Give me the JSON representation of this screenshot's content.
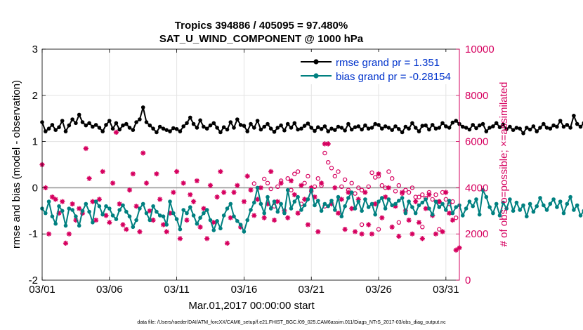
{
  "chart_data": {
    "type": "line",
    "title": "Tropics 394886 / 405095 = 97.480%",
    "subtitle": "SAT_U_WIND_COMPONENT @ 1000 hPa",
    "xlabel": "Mar.01,2017 00:00:00 start",
    "ylabel_left": "rmse and bias (model - observation)",
    "ylabel_right": "# of obs: o=possible; ×=assimilated",
    "footer": "data file: /Users/raeder/DAI/ATM_forcXX/CAM6_setup/f.e21.FHIST_BGC.f09_025.CAM6assim.011/Diags_NTrS_2017-03/obs_diag_output.nc",
    "xlim": [
      1,
      32
    ],
    "ylim_left": [
      -2,
      3
    ],
    "ylim_right": [
      0,
      10000
    ],
    "grid": true,
    "x_ticks": [
      {
        "value": 1,
        "label": "03/01"
      },
      {
        "value": 6,
        "label": "03/06"
      },
      {
        "value": 11,
        "label": "03/11"
      },
      {
        "value": 16,
        "label": "03/16"
      },
      {
        "value": 21,
        "label": "03/21"
      },
      {
        "value": 26,
        "label": "03/26"
      },
      {
        "value": 31,
        "label": "03/31"
      }
    ],
    "y_ticks_left": [
      "-2",
      "-1",
      "0",
      "1",
      "2",
      "3"
    ],
    "y_ticks_right": [
      "0",
      "2000",
      "4000",
      "6000",
      "8000",
      "10000"
    ],
    "colors": {
      "rmse": "#000000",
      "bias": "#008080",
      "obs": "#d6005f",
      "right_axis": "#d6005f",
      "legend_text": "#0033cc",
      "zero_line": "#999999",
      "grid": "#e3e3e3"
    },
    "time_step_days": 0.25,
    "series": [
      {
        "name": "rmse",
        "legend": "rmse grand pr = 1.351",
        "axis": "left",
        "values": [
          1.42,
          1.22,
          1.28,
          1.36,
          1.25,
          1.31,
          1.45,
          1.22,
          1.35,
          1.48,
          1.4,
          1.58,
          1.42,
          1.35,
          1.4,
          1.32,
          1.36,
          1.3,
          1.22,
          1.36,
          1.45,
          1.28,
          1.4,
          1.26,
          1.35,
          1.38,
          1.3,
          1.25,
          1.42,
          1.48,
          1.74,
          1.42,
          1.35,
          1.28,
          1.2,
          1.32,
          1.28,
          1.25,
          1.22,
          1.29,
          1.27,
          1.22,
          1.33,
          1.4,
          1.52,
          1.38,
          1.3,
          1.46,
          1.32,
          1.28,
          1.35,
          1.4,
          1.3,
          1.2,
          1.31,
          1.26,
          1.42,
          1.3,
          1.48,
          1.36,
          1.34,
          1.22,
          1.38,
          1.3,
          1.45,
          1.26,
          1.32,
          1.38,
          1.28,
          1.21,
          1.3,
          1.35,
          1.24,
          1.38,
          1.3,
          1.4,
          1.26,
          1.28,
          1.34,
          1.39,
          1.3,
          1.23,
          1.31,
          1.27,
          1.33,
          1.22,
          1.28,
          1.25,
          1.32,
          1.3,
          1.24,
          1.38,
          1.26,
          1.31,
          1.33,
          1.26,
          1.35,
          1.28,
          1.3,
          1.38,
          1.36,
          1.28,
          1.33,
          1.3,
          1.25,
          1.33,
          1.27,
          1.2,
          1.32,
          1.28,
          1.4,
          1.3,
          1.22,
          1.34,
          1.35,
          1.26,
          1.36,
          1.28,
          1.3,
          1.4,
          1.33,
          1.3,
          1.41,
          1.45,
          1.38,
          1.32,
          1.3,
          1.26,
          1.36,
          1.29,
          1.35,
          1.38,
          1.22,
          1.3,
          1.33,
          1.4,
          1.31,
          1.37,
          1.27,
          1.32,
          1.25,
          1.3,
          1.28,
          1.18,
          1.3,
          1.26,
          1.33,
          1.22,
          1.3,
          1.38,
          1.3,
          1.28,
          1.35,
          1.32,
          1.45,
          1.32,
          1.36,
          1.3,
          1.56,
          1.38,
          1.32,
          1.4,
          1.28,
          1.38,
          1.34,
          1.42,
          1.36,
          1.45,
          1.38,
          1.52,
          1.48,
          1.42,
          1.56,
          1.6,
          1.55,
          1.48,
          1.56,
          1.44,
          1.45,
          1.5
        ]
      },
      {
        "name": "bias",
        "legend": "bias grand pr = -0.28154",
        "axis": "left",
        "values": [
          -0.45,
          -0.55,
          -0.3,
          -0.62,
          -0.78,
          -0.4,
          -0.5,
          -0.82,
          -0.45,
          -0.48,
          -0.62,
          -0.82,
          -0.5,
          -0.35,
          -0.52,
          -0.75,
          -0.3,
          -0.4,
          -0.58,
          -0.4,
          -0.45,
          -0.6,
          -0.68,
          -0.48,
          -0.38,
          -0.52,
          -0.62,
          -0.85,
          -0.7,
          -0.45,
          -0.35,
          -0.55,
          -0.7,
          -0.4,
          -0.52,
          -0.6,
          -0.62,
          -0.8,
          -0.3,
          -0.55,
          -0.68,
          -0.9,
          -0.48,
          -0.55,
          -0.42,
          -0.6,
          -0.78,
          -0.65,
          -0.55,
          -0.48,
          -0.7,
          -0.92,
          -0.72,
          -0.88,
          -0.6,
          -0.45,
          -0.35,
          -0.62,
          -0.72,
          -0.8,
          -0.95,
          -0.7,
          -0.48,
          -0.32,
          0.0,
          -0.35,
          -0.55,
          -0.2,
          -0.45,
          -0.3,
          -0.52,
          -0.35,
          -0.55,
          -0.05,
          -0.45,
          -0.3,
          -0.2,
          -0.48,
          -0.38,
          -0.25,
          -0.05,
          -0.38,
          -0.28,
          -0.5,
          -0.35,
          -0.4,
          -0.28,
          -0.48,
          -0.2,
          -0.62,
          -0.4,
          -0.22,
          -0.1,
          -0.45,
          -0.3,
          -0.5,
          -0.25,
          -0.42,
          -0.35,
          -0.58,
          -0.3,
          -0.22,
          -0.45,
          -0.25,
          -0.38,
          -0.35,
          -0.28,
          -0.22,
          -0.55,
          -0.3,
          -0.42,
          -0.55,
          -0.38,
          -0.32,
          -0.25,
          -0.45,
          -0.58,
          -0.3,
          -0.42,
          -0.35,
          -0.48,
          -0.28,
          -0.55,
          -0.42,
          -0.38,
          -0.6,
          -0.45,
          -0.3,
          -0.4,
          -0.25,
          -0.58,
          -0.05,
          -0.2,
          -0.42,
          -0.55,
          -0.35,
          -0.6,
          -0.32,
          -0.45,
          -0.25,
          -0.5,
          -0.32,
          -0.48,
          -0.38,
          -0.62,
          -0.35,
          -0.52,
          -0.4,
          -0.22,
          -0.38,
          -0.48,
          -0.35,
          -0.25,
          -0.42,
          -0.3,
          -0.55,
          -0.35,
          -0.2,
          -0.48,
          -0.38,
          -0.6,
          -0.5,
          -0.4,
          -0.22,
          -0.8,
          -0.35,
          -0.05,
          -0.25,
          -0.45,
          -0.55,
          -0.4,
          -0.6,
          -0.3,
          -0.35,
          -0.1,
          -0.55,
          -0.3,
          -0.15,
          -0.25,
          -0.55,
          -0.3,
          -0.4,
          -0.35,
          -0.05,
          -0.55,
          -0.4
        ]
      },
      {
        "name": "obs_possible",
        "axis": "right",
        "marker": "o",
        "points": [
          [
            16.75,
            4180
          ],
          [
            17.5,
            4380
          ],
          [
            17.75,
            4200
          ],
          [
            18.0,
            3950
          ],
          [
            18.5,
            4050
          ],
          [
            18.75,
            4300
          ],
          [
            19.25,
            4400
          ],
          [
            19.5,
            3900
          ],
          [
            19.75,
            4600
          ],
          [
            20.0,
            4700
          ],
          [
            20.5,
            4200
          ],
          [
            20.75,
            4500
          ],
          [
            21.0,
            3850
          ],
          [
            21.25,
            4050
          ],
          [
            21.5,
            4400
          ],
          [
            21.75,
            4100
          ],
          [
            22.0,
            5500
          ],
          [
            22.25,
            5100
          ],
          [
            22.5,
            4850
          ],
          [
            22.75,
            4500
          ],
          [
            23.0,
            4700
          ],
          [
            23.25,
            4050
          ],
          [
            23.5,
            4350
          ],
          [
            23.75,
            3900
          ],
          [
            24.0,
            4200
          ],
          [
            24.25,
            3750
          ],
          [
            24.5,
            4000
          ],
          [
            24.75,
            3900
          ],
          [
            25.25,
            4050
          ],
          [
            25.5,
            4650
          ],
          [
            25.75,
            4450
          ],
          [
            26.0,
            4500
          ],
          [
            26.25,
            4100
          ],
          [
            26.5,
            4000
          ],
          [
            26.75,
            4700
          ],
          [
            27.0,
            4400
          ],
          [
            27.25,
            3850
          ],
          [
            27.5,
            4100
          ],
          [
            27.75,
            3750
          ],
          [
            28.0,
            3900
          ],
          [
            28.25,
            3800
          ],
          [
            28.5,
            4000
          ],
          [
            28.75,
            3600
          ],
          [
            29.0,
            3600
          ],
          [
            29.25,
            3700
          ],
          [
            29.5,
            3550
          ],
          [
            29.75,
            3800
          ],
          [
            30.0,
            3500
          ],
          [
            30.25,
            3700
          ],
          [
            30.5,
            3400
          ],
          [
            30.75,
            3800
          ],
          [
            31.0,
            3500
          ],
          [
            31.25,
            3300
          ],
          [
            31.5,
            3400
          ],
          [
            31.75,
            2700
          ],
          [
            18.25,
            3200
          ],
          [
            20.25,
            3300
          ],
          [
            22.0,
            3200
          ],
          [
            24.75,
            2400
          ],
          [
            26.0,
            2200
          ],
          [
            27.5,
            2500
          ],
          [
            29.25,
            2300
          ],
          [
            30.5,
            2200
          ]
        ]
      },
      {
        "name": "obs_assimilated",
        "axis": "right",
        "marker": "*",
        "points": [
          [
            1.0,
            5000
          ],
          [
            1.25,
            4000
          ],
          [
            1.5,
            2000
          ],
          [
            1.75,
            3600
          ],
          [
            2.0,
            3500
          ],
          [
            2.25,
            2900
          ],
          [
            2.5,
            3400
          ],
          [
            2.75,
            1600
          ],
          [
            3.0,
            2000
          ],
          [
            3.25,
            3300
          ],
          [
            3.5,
            2600
          ],
          [
            3.75,
            3100
          ],
          [
            4.0,
            2900
          ],
          [
            4.25,
            5700
          ],
          [
            4.5,
            4400
          ],
          [
            4.75,
            3400
          ],
          [
            5.0,
            2600
          ],
          [
            5.25,
            3500
          ],
          [
            5.5,
            4700
          ],
          [
            5.75,
            2800
          ],
          [
            6.0,
            2500
          ],
          [
            6.25,
            4200
          ],
          [
            6.5,
            6400
          ],
          [
            6.75,
            3300
          ],
          [
            7.0,
            2400
          ],
          [
            7.25,
            2200
          ],
          [
            7.5,
            3900
          ],
          [
            7.75,
            4600
          ],
          [
            8.0,
            3200
          ],
          [
            8.25,
            2100
          ],
          [
            8.5,
            5500
          ],
          [
            8.75,
            4200
          ],
          [
            9.0,
            3000
          ],
          [
            9.25,
            2600
          ],
          [
            9.5,
            4600
          ],
          [
            9.75,
            3500
          ],
          [
            10.0,
            2400
          ],
          [
            10.25,
            2100
          ],
          [
            10.5,
            2900
          ],
          [
            10.75,
            3800
          ],
          [
            11.0,
            4700
          ],
          [
            11.25,
            1800
          ],
          [
            11.5,
            4200
          ],
          [
            11.75,
            2600
          ],
          [
            12.0,
            3700
          ],
          [
            12.25,
            3400
          ],
          [
            12.5,
            4300
          ],
          [
            12.75,
            2300
          ],
          [
            13.0,
            3100
          ],
          [
            13.25,
            1800
          ],
          [
            13.5,
            4100
          ],
          [
            13.75,
            2500
          ],
          [
            14.0,
            3600
          ],
          [
            14.25,
            4700
          ],
          [
            14.5,
            3800
          ],
          [
            14.75,
            1600
          ],
          [
            15.0,
            2700
          ],
          [
            15.25,
            3800
          ],
          [
            15.5,
            4100
          ],
          [
            15.75,
            2300
          ],
          [
            16.0,
            3400
          ],
          [
            16.25,
            4500
          ],
          [
            16.5,
            3900
          ],
          [
            16.75,
            2800
          ],
          [
            17.0,
            3500
          ],
          [
            17.25,
            4000
          ],
          [
            17.5,
            2700
          ],
          [
            17.75,
            3300
          ],
          [
            18.0,
            4700
          ],
          [
            18.25,
            2600
          ],
          [
            18.5,
            3400
          ],
          [
            18.75,
            4200
          ],
          [
            19.0,
            3000
          ],
          [
            19.25,
            2700
          ],
          [
            19.5,
            4300
          ],
          [
            19.75,
            3700
          ],
          [
            20.0,
            2900
          ],
          [
            20.25,
            4100
          ],
          [
            20.5,
            3500
          ],
          [
            20.75,
            2400
          ],
          [
            21.0,
            4000
          ],
          [
            21.25,
            3600
          ],
          [
            21.5,
            2100
          ],
          [
            21.75,
            4200
          ],
          [
            22.0,
            5900
          ],
          [
            22.25,
            5900
          ],
          [
            22.5,
            3300
          ],
          [
            22.75,
            4000
          ],
          [
            23.0,
            2900
          ],
          [
            23.25,
            3500
          ],
          [
            23.5,
            2200
          ],
          [
            23.75,
            3800
          ],
          [
            24.0,
            3100
          ],
          [
            24.25,
            2100
          ],
          [
            24.5,
            3500
          ],
          [
            24.75,
            2000
          ],
          [
            25.0,
            3800
          ],
          [
            25.25,
            2400
          ],
          [
            25.5,
            2000
          ],
          [
            25.75,
            3300
          ],
          [
            26.0,
            4600
          ],
          [
            26.25,
            2700
          ],
          [
            26.5,
            3600
          ],
          [
            26.75,
            4000
          ],
          [
            27.0,
            2300
          ],
          [
            27.25,
            3200
          ],
          [
            27.5,
            1900
          ],
          [
            27.75,
            3800
          ],
          [
            28.0,
            3000
          ],
          [
            28.25,
            2600
          ],
          [
            28.5,
            2000
          ],
          [
            28.75,
            3400
          ],
          [
            29.0,
            2500
          ],
          [
            29.25,
            1800
          ],
          [
            29.5,
            3100
          ],
          [
            29.75,
            3700
          ],
          [
            30.0,
            2800
          ],
          [
            30.25,
            2000
          ],
          [
            30.5,
            3400
          ],
          [
            30.75,
            2100
          ],
          [
            31.0,
            3800
          ],
          [
            31.25,
            2900
          ],
          [
            31.5,
            2600
          ],
          [
            31.75,
            1300
          ],
          [
            32.0,
            1400
          ]
        ]
      }
    ]
  }
}
